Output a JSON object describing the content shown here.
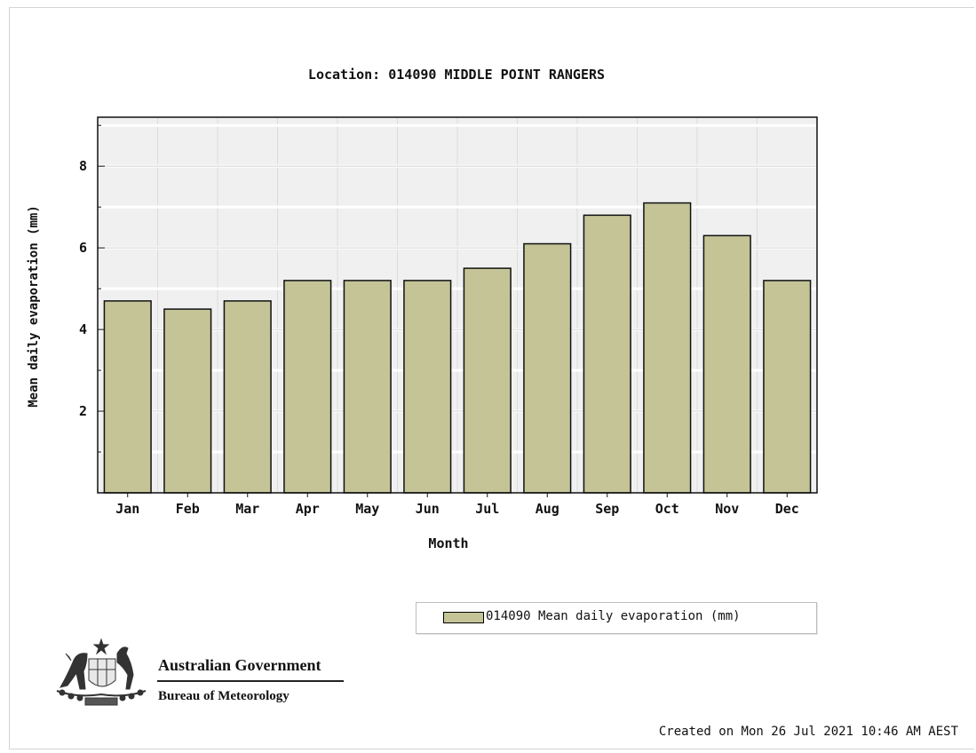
{
  "chart_data": {
    "type": "bar",
    "title": "Location: 014090 MIDDLE POINT RANGERS",
    "xlabel": "Month",
    "ylabel": "Mean daily evaporation (mm)",
    "categories": [
      "Jan",
      "Feb",
      "Mar",
      "Apr",
      "May",
      "Jun",
      "Jul",
      "Aug",
      "Sep",
      "Oct",
      "Nov",
      "Dec"
    ],
    "series": [
      {
        "name": "014090 Mean daily evaporation (mm)",
        "values": [
          4.7,
          4.5,
          4.7,
          5.2,
          5.2,
          5.2,
          5.5,
          6.1,
          6.8,
          7.1,
          6.3,
          5.2
        ],
        "color": "#c4c497"
      }
    ],
    "ylim": [
      0,
      9.2
    ],
    "yticks": [
      2,
      4,
      6,
      8
    ],
    "grid": true,
    "legend_position": "bottom-right",
    "plot_background": "#f0f0f0",
    "grid_color": "#ffffff"
  },
  "branding": {
    "government": "Australian Government",
    "agency": "Bureau of Meteorology",
    "logo_icon": "coat-of-arms-icon"
  },
  "footer": {
    "created": "Created on Mon 26 Jul 2021 10:46 AM AEST"
  }
}
